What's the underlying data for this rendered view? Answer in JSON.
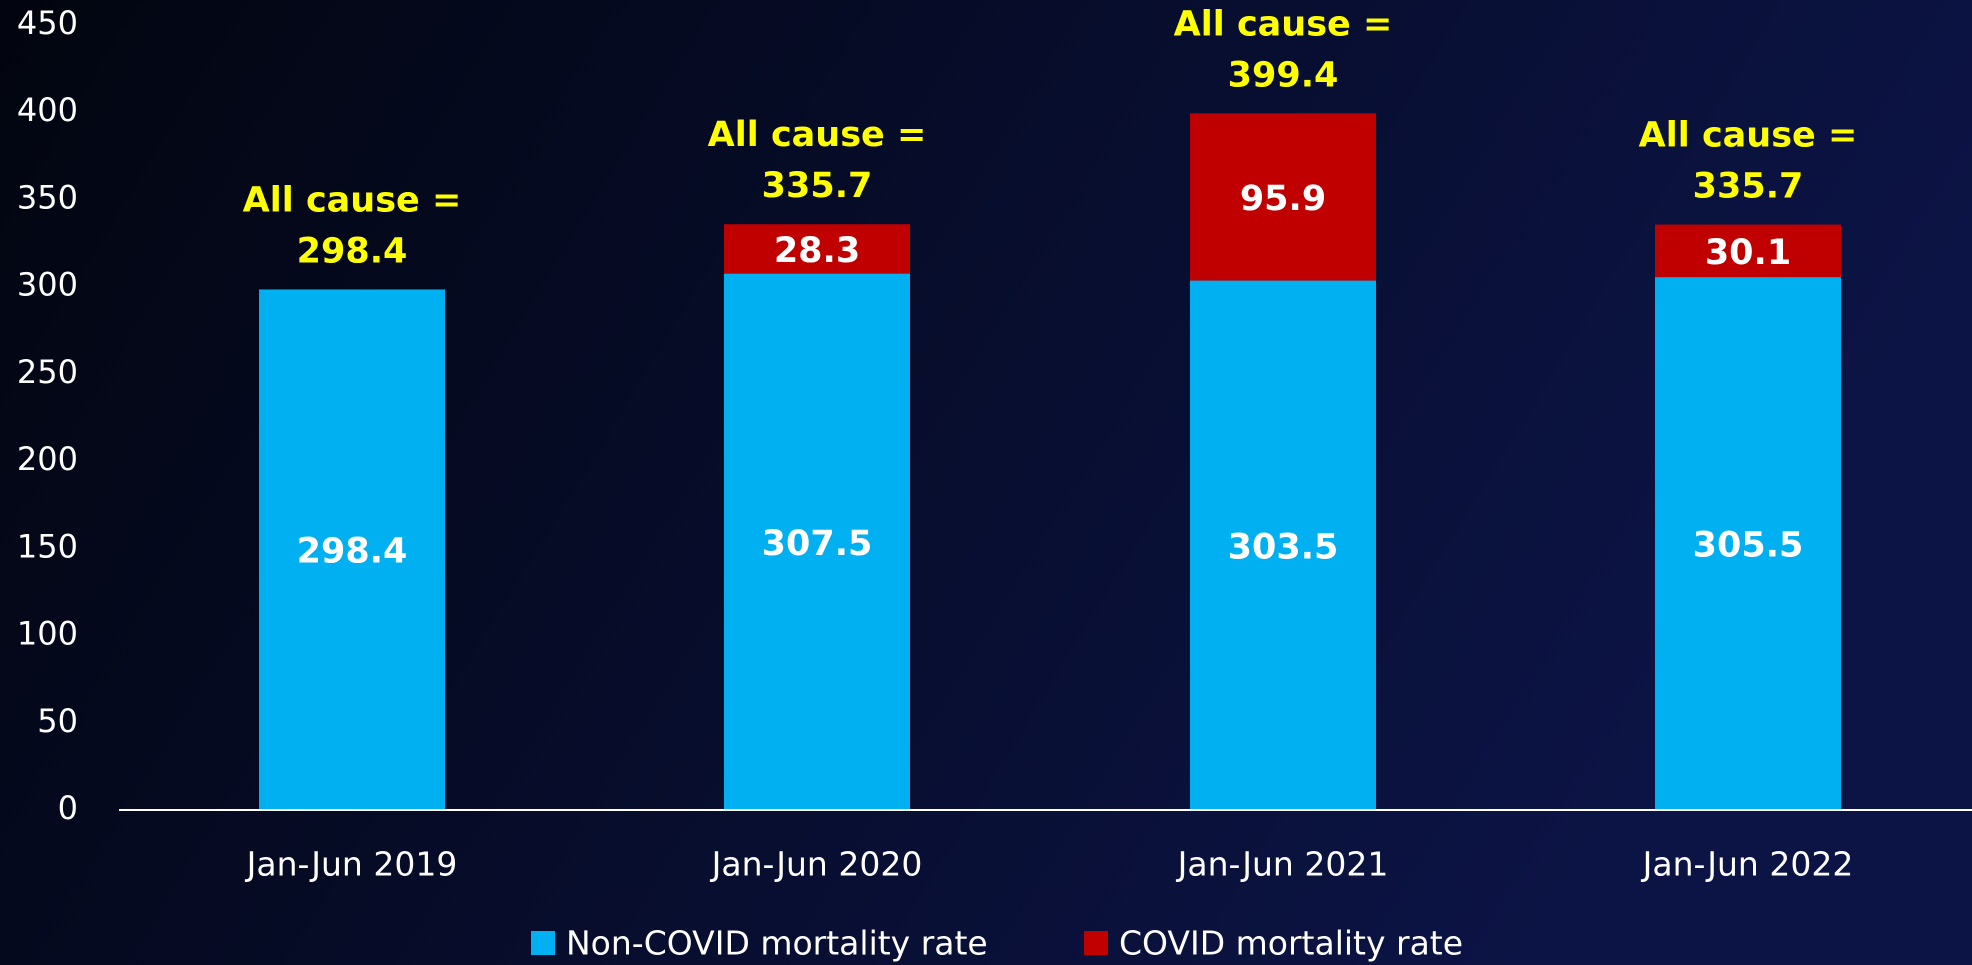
{
  "chart_data": {
    "type": "stacked_bar",
    "categories": [
      "Jan-Jun 2019",
      "Jan-Jun 2020",
      "Jan-Jun 2021",
      "Jan-Jun 2022"
    ],
    "series": [
      {
        "name": "Non-COVID mortality rate",
        "color": "#00b0f0",
        "values": [
          298.4,
          307.5,
          303.5,
          305.5
        ]
      },
      {
        "name": "COVID mortality rate",
        "color": "#c00000",
        "values": [
          null,
          28.3,
          95.9,
          30.1
        ]
      }
    ],
    "annotations": [
      {
        "lines": [
          "All cause =",
          "298.4"
        ]
      },
      {
        "lines": [
          "All cause =",
          "335.7"
        ]
      },
      {
        "lines": [
          "All cause =",
          "399.4"
        ]
      },
      {
        "lines": [
          "All cause =",
          "335.7"
        ]
      }
    ],
    "ylim": [
      0,
      450
    ],
    "yticks": [
      0,
      50,
      100,
      150,
      200,
      250,
      300,
      350,
      400,
      450
    ],
    "grid": false,
    "legend": "bottom"
  }
}
